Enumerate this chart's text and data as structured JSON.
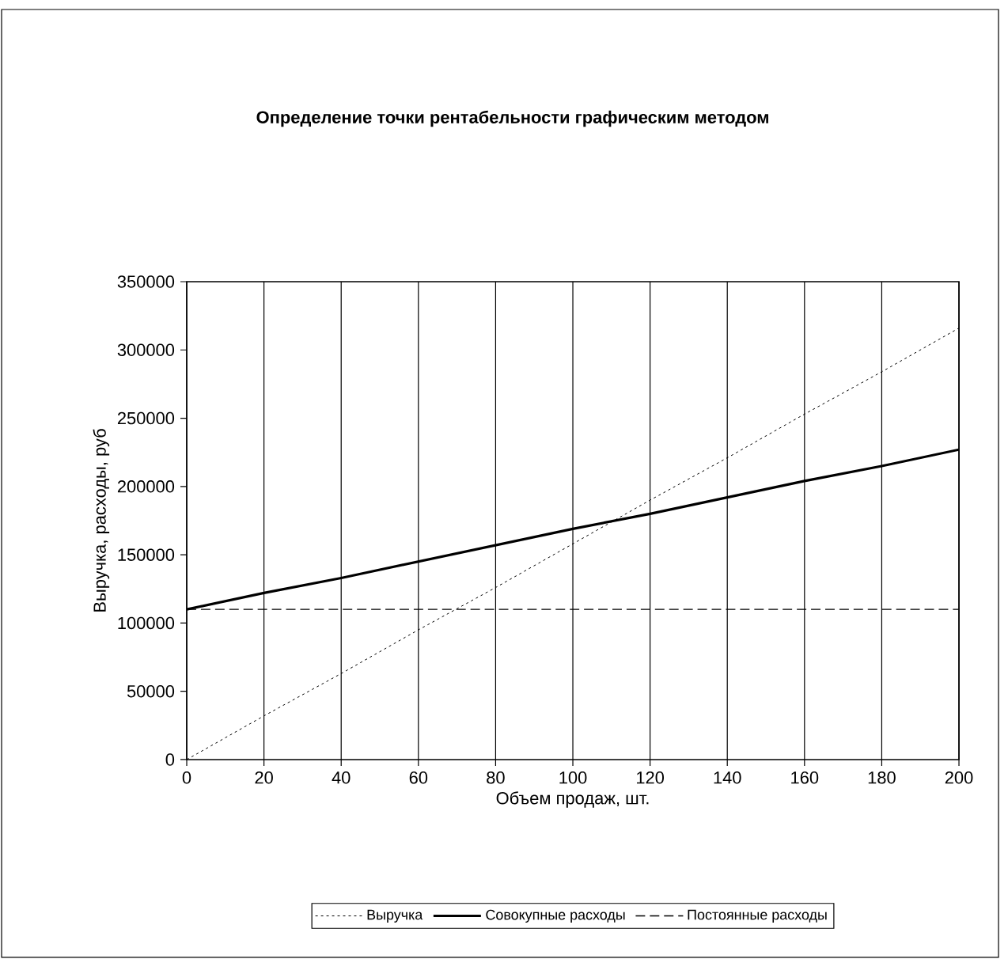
{
  "chart_data": {
    "type": "line",
    "title": "Определение точки рентабельности графическим методом",
    "xlabel": "Объем продаж, шт.",
    "ylabel": "Выручка, расходы, руб",
    "x": [
      0,
      20,
      40,
      60,
      80,
      100,
      120,
      140,
      160,
      180,
      200
    ],
    "series": [
      {
        "name": "Выручка",
        "color": "#000000",
        "line_style": "dotted",
        "values": [
          0,
          32000,
          63000,
          95000,
          126000,
          158000,
          190000,
          221000,
          253000,
          284000,
          316000
        ]
      },
      {
        "name": "Совокупные расходы",
        "color": "#000000",
        "line_style": "solid",
        "values": [
          110000,
          122000,
          133000,
          145000,
          157000,
          169000,
          180000,
          192000,
          204000,
          215000,
          227000
        ]
      },
      {
        "name": "Постоянные расходы",
        "color": "#000000",
        "line_style": "dashed",
        "values": [
          110000,
          110000,
          110000,
          110000,
          110000,
          110000,
          110000,
          110000,
          110000,
          110000,
          110000
        ]
      }
    ],
    "xlim": [
      0,
      200
    ],
    "xticks": [
      0,
      20,
      40,
      60,
      80,
      100,
      120,
      140,
      160,
      180,
      200
    ],
    "ylim": [
      0,
      350000
    ],
    "yticks": [
      0,
      50000,
      100000,
      150000,
      200000,
      250000,
      300000,
      350000
    ],
    "grid": "x",
    "legend": "bottom"
  }
}
